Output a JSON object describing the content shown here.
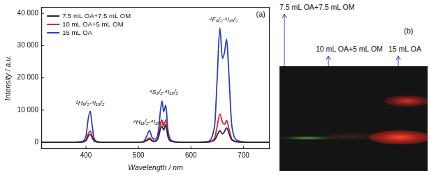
{
  "chart_data": {
    "type": "line",
    "panel_label": "(a)",
    "x_label": "Wavelength / nm",
    "y_label": "Intensity / a.u.",
    "x": [
      315,
      350,
      370,
      390,
      400,
      404,
      408,
      412,
      416,
      425,
      450,
      480,
      500,
      510,
      516,
      521,
      526,
      532,
      538,
      542,
      545,
      548,
      552,
      556,
      562,
      575,
      600,
      630,
      645,
      650,
      655,
      660,
      664,
      668,
      672,
      678,
      690,
      710,
      750
    ],
    "series": [
      {
        "name": "7.5 mL OA+7.5 mL OM",
        "color": "#1f2a44",
        "values": [
          0,
          0,
          0,
          50,
          500,
          1800,
          2500,
          1400,
          300,
          50,
          0,
          0,
          0,
          100,
          600,
          1000,
          400,
          300,
          1500,
          4200,
          5000,
          3800,
          5400,
          1800,
          300,
          50,
          0,
          50,
          700,
          2200,
          3600,
          2600,
          3400,
          4500,
          3000,
          700,
          100,
          0,
          0
        ]
      },
      {
        "name": "10 mL OA+5 mL OM",
        "color": "#e8242e",
        "values": [
          0,
          0,
          0,
          80,
          700,
          2500,
          3500,
          1900,
          400,
          50,
          0,
          0,
          0,
          150,
          800,
          1400,
          600,
          400,
          2000,
          5600,
          6800,
          5000,
          7000,
          2300,
          400,
          50,
          0,
          80,
          1300,
          5000,
          8800,
          6200,
          5600,
          6800,
          4500,
          1000,
          150,
          0,
          0
        ]
      },
      {
        "name": "15 mL OA",
        "color": "#2b3ec0",
        "values": [
          0,
          0,
          0,
          200,
          2000,
          7000,
          9700,
          5000,
          1000,
          100,
          0,
          0,
          0,
          300,
          2000,
          3700,
          1500,
          1000,
          3500,
          10000,
          12800,
          9500,
          11500,
          4000,
          700,
          100,
          0,
          200,
          5000,
          20000,
          35500,
          26000,
          28000,
          32000,
          22000,
          5000,
          500,
          50,
          0
        ]
      }
    ],
    "xlim": [
      315,
      750
    ],
    "xticks": [
      400,
      500,
      600,
      700
    ],
    "ylim": [
      -2000,
      42000
    ],
    "yticks": [
      0,
      {
        "value": 10000,
        "label": "10 000"
      },
      {
        "value": 20000,
        "label": "20 000"
      },
      {
        "value": 30000,
        "label": "30 000"
      },
      {
        "value": 40000,
        "label": "40 000"
      }
    ],
    "grid": false,
    "legend": "upper left",
    "annotations": [
      {
        "text": "²H₉/₂-⁴I₁₅/₂",
        "x": 408,
        "y": 11000
      },
      {
        "text": "⁴H₁₁/₂-⁴I₁₅/₂",
        "x": 519,
        "y": 5200
      },
      {
        "text": "⁴S₃/₂-⁴I₁₅/₂",
        "x": 548,
        "y": 14500
      },
      {
        "text": "⁴F₉/₂-⁴I₁₅/₂",
        "x": 662,
        "y": 37000
      }
    ]
  },
  "photo": {
    "panel_label": "(b)",
    "labels": [
      "7.5 mL OA+7.5 mL OM",
      "10 mL OA+5 mL OM",
      "15 mL OA"
    ]
  }
}
